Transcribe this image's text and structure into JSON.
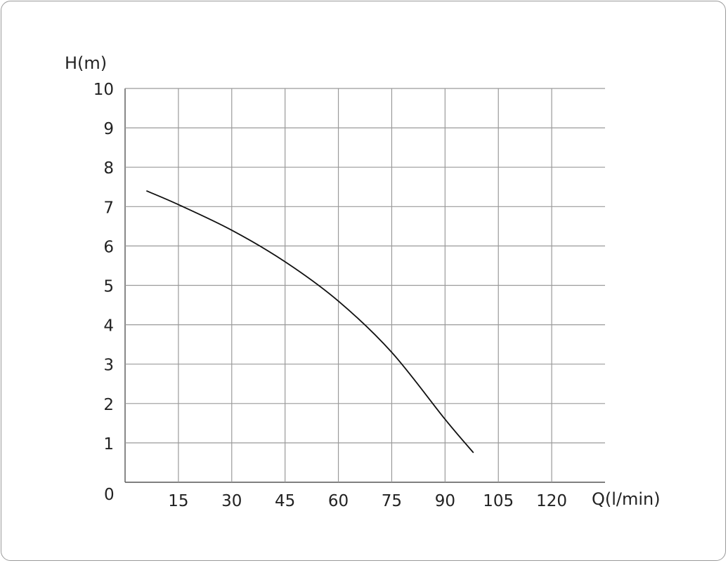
{
  "chart_data": {
    "type": "line",
    "title": "",
    "xlabel": "Q(l/min)",
    "ylabel": "H(m)",
    "xlim": [
      0,
      135
    ],
    "ylim": [
      0,
      10
    ],
    "origin_label": "0",
    "x_ticks": [
      15,
      30,
      45,
      60,
      75,
      90,
      105,
      120
    ],
    "x_tick_labels": [
      "15",
      "30",
      "45",
      "60",
      "75",
      "90",
      "105",
      "120"
    ],
    "y_ticks": [
      1,
      2,
      3,
      4,
      5,
      6,
      7,
      8,
      9,
      10
    ],
    "y_tick_labels": [
      "1",
      "2",
      "3",
      "4",
      "5",
      "6",
      "7",
      "8",
      "9",
      "10"
    ],
    "grid": true,
    "legend": "none",
    "series": [
      {
        "x": [
          6,
          15,
          30,
          45,
          60,
          75,
          90,
          98
        ],
        "y": [
          7.4,
          7.05,
          6.4,
          5.6,
          4.6,
          3.3,
          1.6,
          0.75
        ]
      }
    ],
    "colors": {
      "line": "#111111",
      "grid": "#9a9a9a",
      "text": "#222222"
    }
  }
}
